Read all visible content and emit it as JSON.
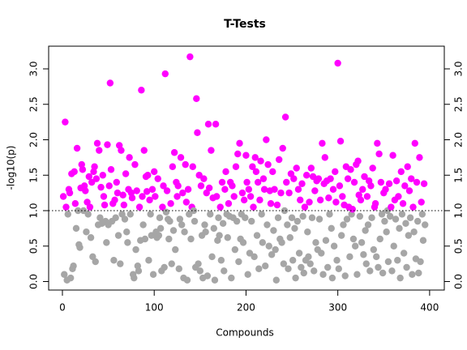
{
  "chart_data": {
    "type": "scatter",
    "title": "T-Tests",
    "x_label": "Compounds",
    "y_label": "-log10(p)",
    "xlim": [
      -15,
      416
    ],
    "xticks": [
      0,
      100,
      200,
      300,
      400
    ],
    "ylim": [
      -0.12,
      3.32
    ],
    "yticks": [
      {
        "value": 0,
        "label": "0.0"
      },
      {
        "value": 0.5,
        "label": "0.5"
      },
      {
        "value": 1,
        "label": "1.0"
      },
      {
        "value": 1.5,
        "label": "1.5"
      },
      {
        "value": 2,
        "label": "2.0"
      },
      {
        "value": 2.5,
        "label": "2.5"
      },
      {
        "value": 3,
        "label": "3.0"
      }
    ],
    "threshold": 1,
    "color": "#ff00ff",
    "below_color": "#a6a6a6",
    "x": [
      1,
      2,
      3,
      4,
      5,
      6,
      7,
      8,
      9,
      10,
      11,
      12,
      13,
      14,
      15,
      16,
      17,
      18,
      19,
      20,
      21,
      22,
      23,
      24,
      25,
      26,
      27,
      28,
      29,
      30,
      31,
      32,
      33,
      34,
      35,
      36,
      37,
      38,
      39,
      40,
      41,
      42,
      43,
      44,
      45,
      46,
      47,
      48,
      49,
      50,
      51,
      52,
      53,
      54,
      55,
      56,
      57,
      58,
      59,
      60,
      61,
      62,
      63,
      64,
      65,
      66,
      67,
      68,
      69,
      70,
      71,
      72,
      73,
      74,
      75,
      76,
      77,
      78,
      79,
      80,
      81,
      82,
      83,
      84,
      85,
      86,
      87,
      88,
      89,
      90,
      91,
      92,
      93,
      94,
      95,
      96,
      97,
      98,
      99,
      100,
      101,
      102,
      103,
      104,
      105,
      106,
      107,
      108,
      109,
      110,
      111,
      112,
      113,
      114,
      115,
      116,
      117,
      118,
      119,
      120,
      121,
      122,
      123,
      124,
      125,
      126,
      127,
      128,
      129,
      130,
      131,
      132,
      133,
      134,
      135,
      136,
      137,
      138,
      139,
      140,
      141,
      142,
      143,
      144,
      145,
      146,
      147,
      148,
      149,
      150,
      151,
      152,
      153,
      154,
      155,
      156,
      157,
      158,
      159,
      160,
      161,
      162,
      163,
      164,
      165,
      166,
      167,
      168,
      169,
      170,
      171,
      172,
      173,
      174,
      175,
      176,
      177,
      178,
      179,
      180,
      181,
      182,
      183,
      184,
      185,
      186,
      187,
      188,
      189,
      190,
      191,
      192,
      193,
      194,
      195,
      196,
      197,
      198,
      199,
      200,
      201,
      202,
      203,
      204,
      205,
      206,
      207,
      208,
      209,
      210,
      211,
      212,
      213,
      214,
      215,
      216,
      217,
      218,
      219,
      220,
      221,
      222,
      223,
      224,
      225,
      226,
      227,
      228,
      229,
      230,
      231,
      232,
      233,
      234,
      235,
      236,
      237,
      238,
      239,
      240,
      241,
      242,
      243,
      244,
      245,
      246,
      247,
      248,
      249,
      250,
      251,
      252,
      253,
      254,
      255,
      256,
      257,
      258,
      259,
      260,
      261,
      262,
      263,
      264,
      265,
      266,
      267,
      268,
      269,
      270,
      271,
      272,
      273,
      274,
      275,
      276,
      277,
      278,
      279,
      280,
      281,
      282,
      283,
      284,
      285,
      286,
      287,
      288,
      289,
      290,
      291,
      292,
      293,
      294,
      295,
      296,
      297,
      298,
      299,
      300,
      301,
      302,
      303,
      304,
      305,
      306,
      307,
      308,
      309,
      310,
      311,
      312,
      313,
      314,
      315,
      316,
      317,
      318,
      319,
      320,
      321,
      322,
      323,
      324,
      325,
      326,
      327,
      328,
      329,
      330,
      331,
      332,
      333,
      334,
      335,
      336,
      337,
      338,
      339,
      340,
      341,
      342,
      343,
      344,
      345,
      346,
      347,
      348,
      349,
      350,
      351,
      352,
      353,
      354,
      355,
      356,
      357,
      358,
      359,
      360,
      361,
      362,
      363,
      364,
      365,
      366,
      367,
      368,
      369,
      370,
      371,
      372,
      373,
      374,
      375,
      376,
      377,
      378,
      379,
      380,
      381,
      382,
      383,
      384,
      385,
      386,
      387,
      388,
      389,
      390,
      391,
      392,
      393,
      394,
      395
    ],
    "values": [
      1.2,
      0.1,
      2.25,
      1.05,
      0.02,
      0.95,
      1.3,
      1.25,
      0.05,
      1.52,
      0.18,
      0.22,
      1.55,
      1.1,
      0.75,
      1.88,
      1.0,
      0.52,
      0.48,
      1.32,
      1.65,
      1.58,
      1.0,
      1.35,
      1.28,
      0.7,
      1.12,
      0.95,
      1.48,
      1.05,
      0.62,
      1.4,
      0.35,
      1.55,
      1.62,
      0.28,
      1.45,
      1.95,
      0.8,
      1.85,
      0.9,
      1.33,
      0.82,
      1.5,
      1.2,
      1.08,
      0.85,
      0.55,
      1.93,
      0.8,
      1.35,
      2.8,
      1.58,
      0.85,
      1.1,
      0.3,
      1.15,
      0.9,
      1.4,
      1.25,
      0.65,
      1.92,
      0.25,
      1.85,
      0.95,
      1.22,
      1.08,
      0.88,
      1.52,
      0.7,
      0.55,
      1.3,
      1.75,
      0.95,
      1.25,
      1.18,
      0.1,
      0.05,
      1.65,
      0.45,
      1.28,
      0.22,
      0.15,
      1.05,
      0.58,
      2.7,
      1.2,
      0.8,
      1.85,
      0.6,
      1.48,
      1.27,
      1.5,
      0.3,
      1.15,
      0.95,
      0.65,
      1.3,
      0.1,
      1.55,
      1.2,
      0.7,
      0.62,
      1.45,
      0.65,
      0.9,
      0.75,
      0.15,
      1.05,
      1.35,
      0.2,
      2.93,
      0.98,
      1.28,
      0.88,
      0.6,
      0.85,
      1.1,
      0.25,
      1.62,
      0.72,
      1.82,
      0.45,
      1.4,
      1.2,
      1.35,
      0.18,
      0.88,
      1.75,
      0.8,
      1.25,
      0.05,
      0.7,
      1.65,
      1.12,
      0.02,
      1.3,
      0.95,
      3.17,
      0.6,
      1.05,
      1.62,
      1.0,
      0.85,
      0.2,
      2.58,
      2.1,
      0.25,
      1.5,
      0.15,
      1.35,
      0.65,
      0.05,
      1.45,
      0.8,
      0.7,
      1.25,
      0.08,
      2.22,
      1.32,
      0.95,
      1.85,
      0.35,
      1.18,
      0.75,
      0.02,
      2.22,
      1.2,
      0.58,
      0.9,
      0.65,
      1.05,
      0.3,
      1.4,
      0.82,
      0.15,
      1.3,
      1.55,
      0.95,
      0.62,
      1.1,
      0.92,
      1.4,
      0.05,
      1.35,
      0.9,
      1.2,
      0.45,
      1.62,
      0.85,
      1.8,
      0.28,
      1.95,
      0.6,
      0.95,
      1.25,
      0.55,
      1.15,
      0.9,
      1.78,
      1.4,
      0.1,
      1.3,
      0.4,
      1.2,
      0.85,
      1.62,
      1.05,
      0.35,
      1.75,
      1.55,
      0.65,
      1.4,
      0.18,
      1.15,
      1.7,
      0.95,
      0.55,
      1.45,
      1.3,
      0.22,
      2.0,
      0.8,
      1.65,
      0.5,
      1.28,
      1.1,
      0.38,
      1.55,
      0.72,
      1.3,
      0.45,
      0.02,
      1.08,
      0.9,
      1.72,
      0.6,
      1.25,
      0.55,
      1.88,
      0.25,
      1.0,
      2.32,
      1.4,
      0.8,
      0.18,
      1.25,
      0.62,
      1.52,
      0.9,
      0.3,
      1.45,
      0.75,
      0.05,
      1.6,
      0.85,
      1.3,
      0.4,
      1.15,
      0.2,
      1.38,
      0.92,
      0.12,
      1.05,
      0.3,
      1.5,
      0.7,
      0.35,
      1.12,
      0.25,
      1.6,
      0.9,
      1.48,
      0.15,
      1.28,
      0.55,
      1.42,
      0.45,
      1.45,
      0.88,
      1.15,
      0.4,
      1.95,
      0.1,
      1.38,
      1.75,
      0.58,
      1.42,
      0.2,
      1.18,
      0.95,
      1.45,
      0.75,
      0.05,
      1.3,
      0.5,
      1.55,
      1.12,
      0.3,
      3.08,
      0.18,
      1.35,
      1.98,
      0.65,
      1.2,
      0.8,
      1.08,
      0.08,
      1.62,
      0.88,
      1.45,
      1.05,
      0.35,
      1.58,
      0.95,
      1.02,
      0.6,
      1.4,
      0.5,
      1.65,
      0.1,
      1.7,
      1.22,
      0.92,
      1.15,
      0.55,
      1.3,
      0.38,
      1.48,
      0.72,
      0.25,
      1.2,
      0.8,
      1.42,
      0.15,
      1.35,
      0.9,
      1.6,
      0.45,
      1.05,
      1.1,
      0.35,
      1.95,
      0.2,
      1.8,
      0.6,
      1.4,
      0.95,
      0.12,
      1.25,
      0.85,
      1.3,
      0.7,
      1.0,
      0.28,
      1.38,
      0.92,
      1.05,
      0.15,
      1.78,
      0.5,
      1.15,
      0.88,
      1.42,
      0.3,
      1.2,
      0.75,
      0.05,
      1.55,
      0.95,
      1.1,
      0.4,
      1.35,
      0.82,
      0.2,
      1.62,
      0.65,
      1.28,
      0.9,
      1.45,
      0.1,
      1.05,
      0.7,
      1.95,
      0.32,
      1.4,
      0.85,
      0.12,
      1.75,
      0.28,
      1.12,
      0.95,
      0.58,
      1.38,
      0.8
    ]
  }
}
